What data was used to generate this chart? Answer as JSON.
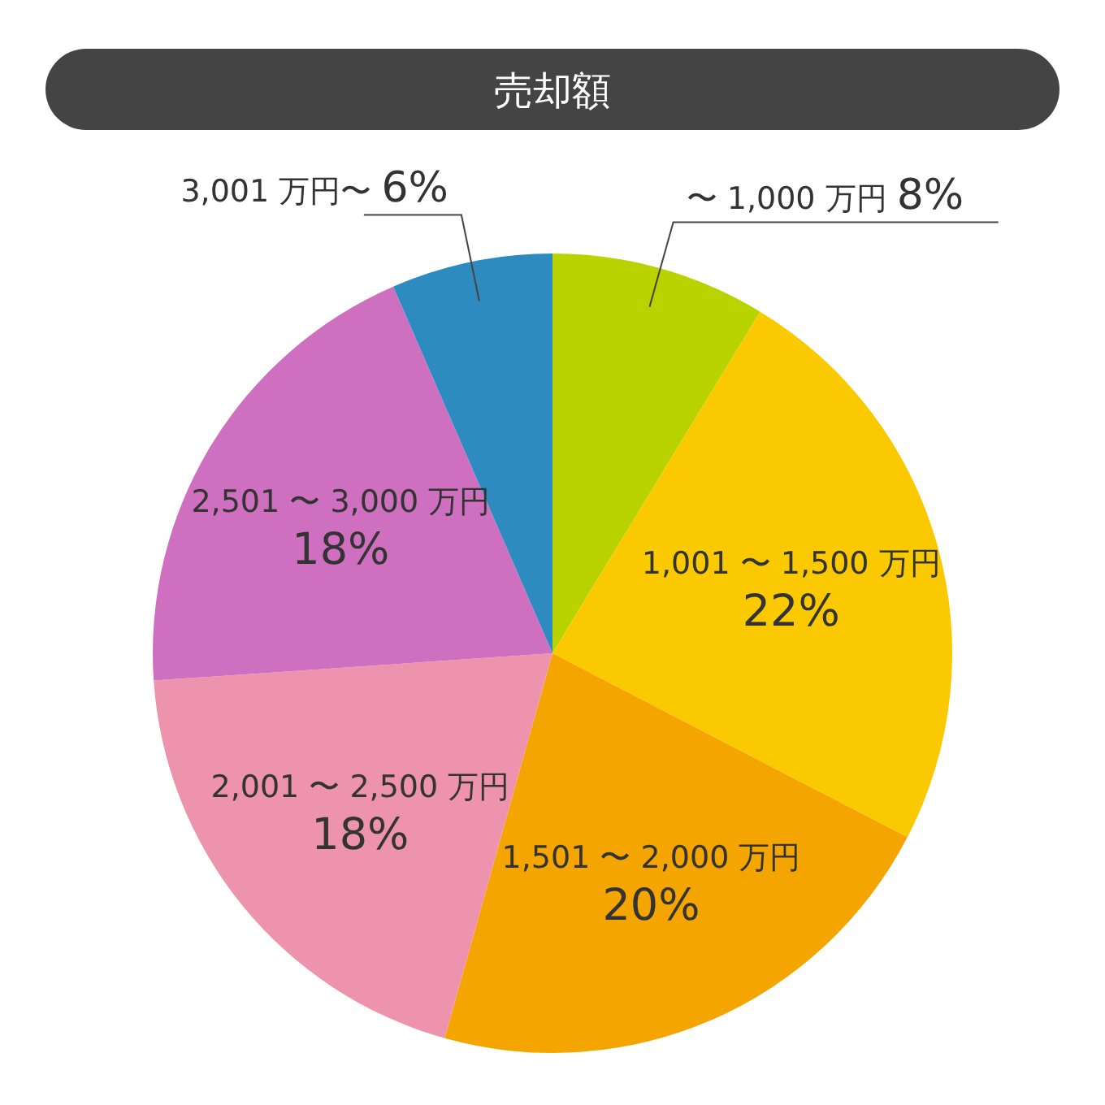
{
  "chart_data": {
    "type": "pie",
    "title": "売却額",
    "categories": [
      "〜 1,000 万円",
      "1,001 〜 1,500 万円",
      "1,501 〜 2,000 万円",
      "2,001 〜 2,500 万円",
      "2,501 〜 3,000 万円",
      "3,001 万円〜"
    ],
    "values": [
      8,
      22,
      20,
      18,
      18,
      6
    ],
    "value_labels": [
      "8%",
      "22%",
      "20%",
      "18%",
      "18%",
      "6%"
    ],
    "colors": [
      "#b9d300",
      "#fbc900",
      "#f4a500",
      "#ee93ad",
      "#cf6fbf",
      "#2e8bbf"
    ]
  }
}
